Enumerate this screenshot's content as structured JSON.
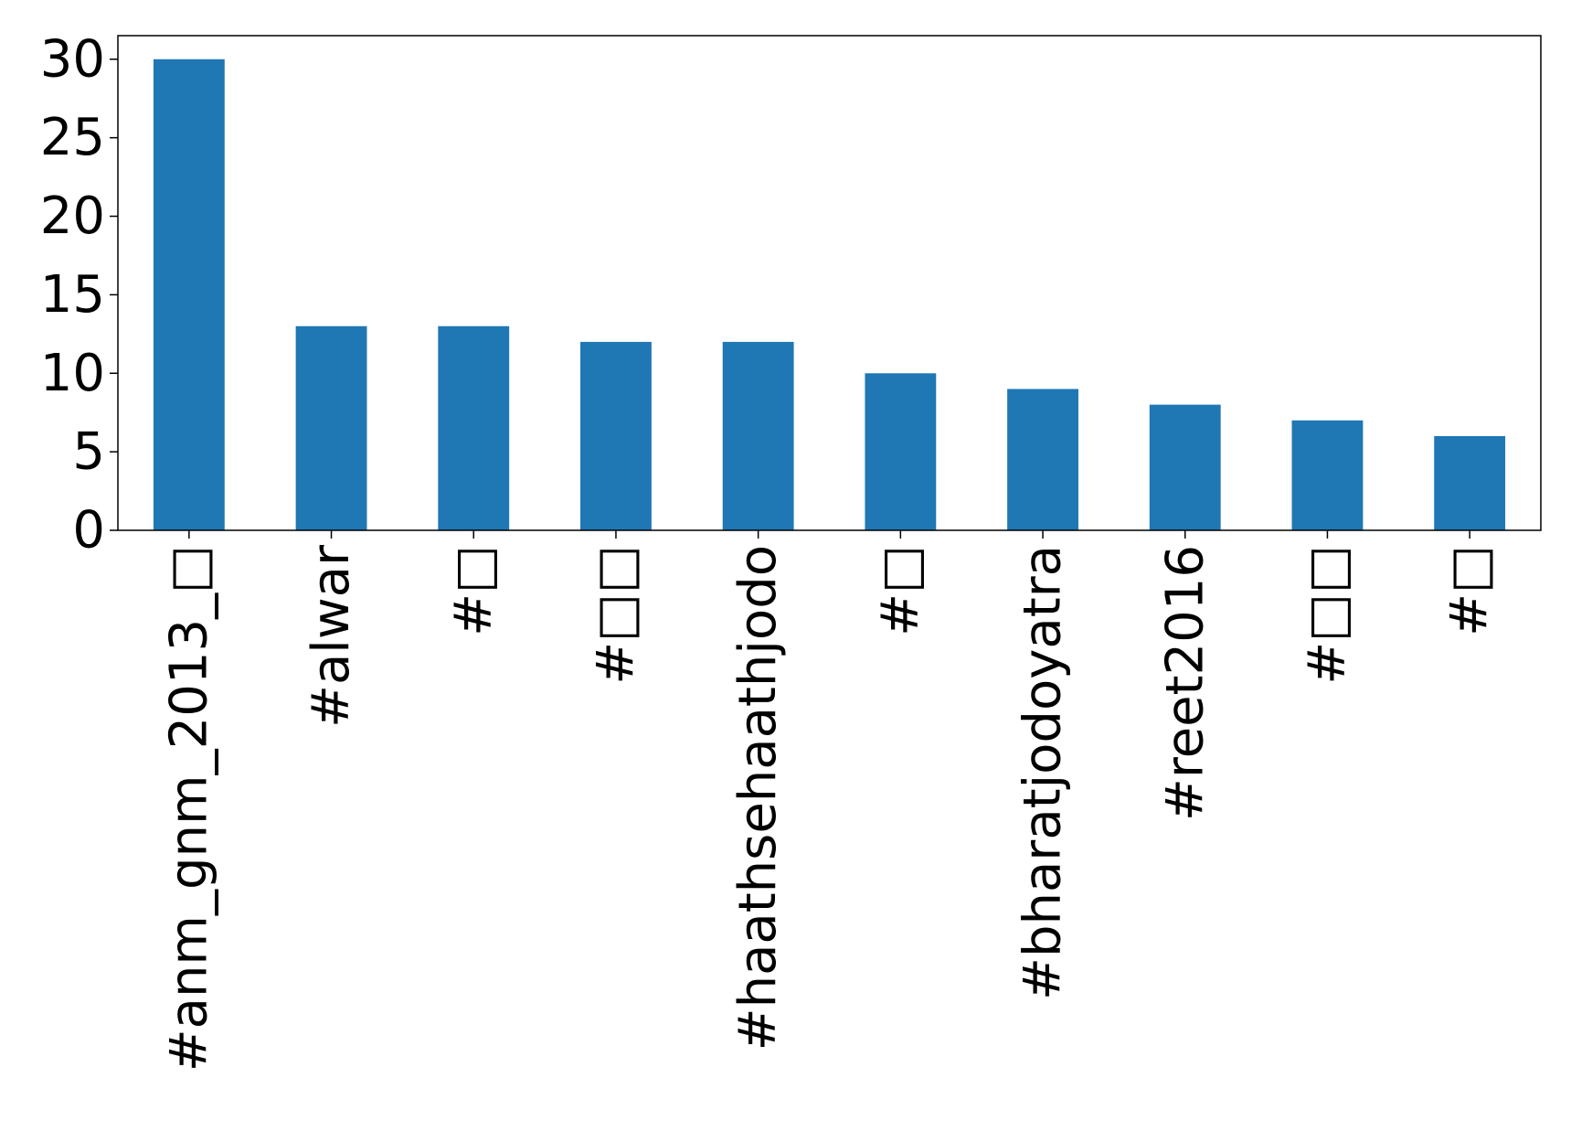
{
  "chart_data": {
    "type": "bar",
    "categories": [
      "#anm_gnm_2013_□",
      "#alwar",
      "#□",
      "#□□",
      "#haathsehaathjodo",
      "#□",
      "#bharatjodoyatra",
      "#reet2016",
      "#□□",
      "#□"
    ],
    "values": [
      30,
      13,
      13,
      12,
      12,
      10,
      9,
      8,
      7,
      6
    ],
    "ylim": [
      0,
      31.5
    ],
    "yticks": [
      0,
      5,
      10,
      15,
      20,
      25,
      30
    ],
    "bar_color": "#1f77b4",
    "grid": false,
    "legend": "none"
  }
}
